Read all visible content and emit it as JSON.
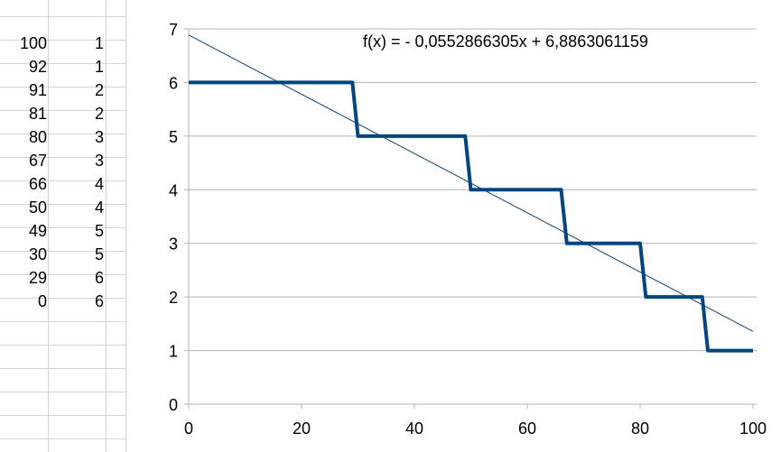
{
  "spreadsheet": {
    "rows": [
      {
        "a": "100",
        "b": "1"
      },
      {
        "a": "92",
        "b": "1"
      },
      {
        "a": "91",
        "b": "2"
      },
      {
        "a": "81",
        "b": "2"
      },
      {
        "a": "80",
        "b": "3"
      },
      {
        "a": "67",
        "b": "3"
      },
      {
        "a": "66",
        "b": "4"
      },
      {
        "a": "50",
        "b": "4"
      },
      {
        "a": "49",
        "b": "5"
      },
      {
        "a": "30",
        "b": "5"
      },
      {
        "a": "29",
        "b": "6"
      },
      {
        "a": "0",
        "b": "6"
      }
    ]
  },
  "chart_data": {
    "type": "line",
    "title": "",
    "xlabel": "",
    "ylabel": "",
    "xlim": [
      0,
      100
    ],
    "ylim": [
      0,
      7
    ],
    "x_ticks": [
      "0",
      "20",
      "40",
      "60",
      "80",
      "100"
    ],
    "y_ticks": [
      "0",
      "1",
      "2",
      "3",
      "4",
      "5",
      "6",
      "7"
    ],
    "grid": "horizontal",
    "legend": "none",
    "series": [
      {
        "color": "#004586",
        "x": [
          0,
          29,
          30,
          49,
          50,
          66,
          67,
          80,
          81,
          91,
          92,
          100
        ],
        "y": [
          6,
          6,
          5,
          5,
          4,
          4,
          3,
          3,
          2,
          2,
          1,
          1
        ]
      }
    ],
    "trendline": {
      "equation": "f(x) =  - 0,0552866305x + 6,8863061159",
      "slope": -0.0552866305,
      "intercept": 6.8863061159,
      "color": "#004586"
    }
  }
}
